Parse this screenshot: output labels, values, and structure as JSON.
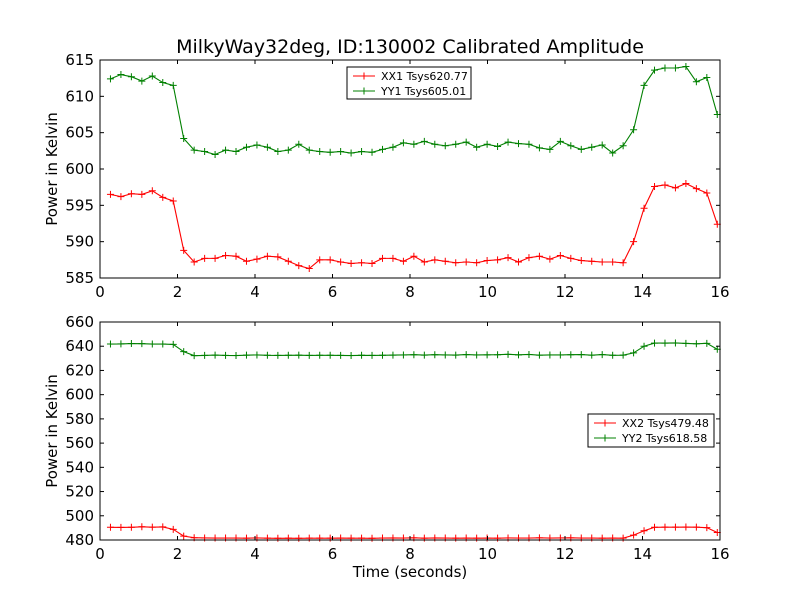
{
  "chart_data": [
    {
      "type": "line",
      "title": "MilkyWay32deg, ID:130002 Calibrated Amplitude",
      "xlabel": "",
      "ylabel": "Power in Kelvin",
      "xlim": [
        0,
        16
      ],
      "ylim": [
        585,
        615
      ],
      "xticks": [
        0,
        2,
        4,
        6,
        8,
        10,
        12,
        14,
        16
      ],
      "yticks": [
        585,
        590,
        595,
        600,
        605,
        610,
        615
      ],
      "grid": false,
      "legend": "top-center",
      "series": [
        {
          "name": "XX1 Tsys620.77",
          "color": "#ff0000",
          "x": [
            0.27,
            0.54,
            0.81,
            1.08,
            1.35,
            1.62,
            1.89,
            2.16,
            2.43,
            2.7,
            2.97,
            3.24,
            3.51,
            3.78,
            4.05,
            4.32,
            4.59,
            4.86,
            5.13,
            5.4,
            5.67,
            5.94,
            6.21,
            6.48,
            6.75,
            7.02,
            7.29,
            7.56,
            7.83,
            8.1,
            8.37,
            8.64,
            8.91,
            9.18,
            9.45,
            9.72,
            9.99,
            10.26,
            10.53,
            10.8,
            11.07,
            11.34,
            11.61,
            11.88,
            12.15,
            12.42,
            12.69,
            12.96,
            13.23,
            13.5,
            13.77,
            14.04,
            14.31,
            14.58,
            14.85,
            15.12,
            15.39,
            15.66,
            15.93
          ],
          "values": [
            596.5,
            596.2,
            596.6,
            596.5,
            597.0,
            596.1,
            595.6,
            588.8,
            587.2,
            587.7,
            587.7,
            588.1,
            588.0,
            587.3,
            587.6,
            588.0,
            587.9,
            587.3,
            586.7,
            586.3,
            587.5,
            587.5,
            587.2,
            587.0,
            587.1,
            587.0,
            587.7,
            587.7,
            587.3,
            588.0,
            587.2,
            587.5,
            587.3,
            587.1,
            587.2,
            587.1,
            587.4,
            587.5,
            587.8,
            587.2,
            587.8,
            588.0,
            587.6,
            588.1,
            587.7,
            587.4,
            587.3,
            587.2,
            587.2,
            587.1,
            590.0,
            594.6,
            597.6,
            597.8,
            597.4,
            598.0,
            597.3,
            596.7,
            592.4
          ]
        },
        {
          "name": "YY1 Tsys605.01",
          "color": "#008000",
          "x": [
            0.27,
            0.54,
            0.81,
            1.08,
            1.35,
            1.62,
            1.89,
            2.16,
            2.43,
            2.7,
            2.97,
            3.24,
            3.51,
            3.78,
            4.05,
            4.32,
            4.59,
            4.86,
            5.13,
            5.4,
            5.67,
            5.94,
            6.21,
            6.48,
            6.75,
            7.02,
            7.29,
            7.56,
            7.83,
            8.1,
            8.37,
            8.64,
            8.91,
            9.18,
            9.45,
            9.72,
            9.99,
            10.26,
            10.53,
            10.8,
            11.07,
            11.34,
            11.61,
            11.88,
            12.15,
            12.42,
            12.69,
            12.96,
            13.23,
            13.5,
            13.77,
            14.04,
            14.31,
            14.58,
            14.85,
            15.12,
            15.39,
            15.66,
            15.93
          ],
          "values": [
            612.4,
            613.0,
            612.7,
            612.1,
            612.8,
            611.9,
            611.5,
            604.2,
            602.6,
            602.4,
            602.0,
            602.6,
            602.4,
            603.0,
            603.3,
            603.0,
            602.4,
            602.6,
            603.4,
            602.6,
            602.4,
            602.3,
            602.4,
            602.2,
            602.4,
            602.3,
            602.7,
            603.0,
            603.6,
            603.4,
            603.8,
            603.4,
            603.2,
            603.4,
            603.7,
            603.0,
            603.4,
            603.1,
            603.7,
            603.5,
            603.4,
            602.9,
            602.7,
            603.8,
            603.2,
            602.7,
            603.0,
            603.3,
            602.2,
            603.2,
            605.4,
            611.5,
            613.6,
            613.9,
            613.9,
            614.1,
            612.0,
            612.6,
            607.5
          ]
        }
      ]
    },
    {
      "type": "line",
      "title": "",
      "xlabel": "Time (seconds)",
      "ylabel": "Power in Kelvin",
      "xlim": [
        0,
        16
      ],
      "ylim": [
        480,
        660
      ],
      "xticks": [
        0,
        2,
        4,
        6,
        8,
        10,
        12,
        14,
        16
      ],
      "yticks": [
        480,
        500,
        520,
        540,
        560,
        580,
        600,
        620,
        640,
        660
      ],
      "grid": false,
      "legend": "center-right",
      "series": [
        {
          "name": "XX2 Tsys479.48",
          "color": "#ff0000",
          "x": [
            0.27,
            0.54,
            0.81,
            1.08,
            1.35,
            1.62,
            1.89,
            2.16,
            2.43,
            2.7,
            2.97,
            3.24,
            3.51,
            3.78,
            4.05,
            4.32,
            4.59,
            4.86,
            5.13,
            5.4,
            5.67,
            5.94,
            6.21,
            6.48,
            6.75,
            7.02,
            7.29,
            7.56,
            7.83,
            8.1,
            8.37,
            8.64,
            8.91,
            9.18,
            9.45,
            9.72,
            9.99,
            10.26,
            10.53,
            10.8,
            11.07,
            11.34,
            11.61,
            11.88,
            12.15,
            12.42,
            12.69,
            12.96,
            13.23,
            13.5,
            13.77,
            14.04,
            14.31,
            14.58,
            14.85,
            15.12,
            15.39,
            15.66,
            15.93
          ],
          "values": [
            490.5,
            490.4,
            490.5,
            490.9,
            490.6,
            490.8,
            488.8,
            483.2,
            481.9,
            481.7,
            481.6,
            481.6,
            481.6,
            481.5,
            481.7,
            481.5,
            481.4,
            481.5,
            481.4,
            481.5,
            481.5,
            481.5,
            481.6,
            481.5,
            481.5,
            481.4,
            481.6,
            481.7,
            481.6,
            481.8,
            481.5,
            481.7,
            481.6,
            481.5,
            481.6,
            481.5,
            481.6,
            481.5,
            481.7,
            481.6,
            481.6,
            481.8,
            481.6,
            481.7,
            481.8,
            481.6,
            481.6,
            481.5,
            481.6,
            481.5,
            484.0,
            487.6,
            490.5,
            490.6,
            490.6,
            490.7,
            490.6,
            490.2,
            486.2
          ]
        },
        {
          "name": "YY2 Tsys618.58",
          "color": "#008000",
          "x": [
            0.27,
            0.54,
            0.81,
            1.08,
            1.35,
            1.62,
            1.89,
            2.16,
            2.43,
            2.7,
            2.97,
            3.24,
            3.51,
            3.78,
            4.05,
            4.32,
            4.59,
            4.86,
            5.13,
            5.4,
            5.67,
            5.94,
            6.21,
            6.48,
            6.75,
            7.02,
            7.29,
            7.56,
            7.83,
            8.1,
            8.37,
            8.64,
            8.91,
            9.18,
            9.45,
            9.72,
            9.99,
            10.26,
            10.53,
            10.8,
            11.07,
            11.34,
            11.61,
            11.88,
            12.15,
            12.42,
            12.69,
            12.96,
            13.23,
            13.5,
            13.77,
            14.04,
            14.31,
            14.58,
            14.85,
            15.12,
            15.39,
            15.66,
            15.93
          ],
          "values": [
            641.8,
            641.9,
            642.2,
            642.1,
            641.8,
            641.8,
            641.5,
            635.5,
            632.2,
            632.4,
            632.7,
            632.4,
            632.3,
            632.6,
            632.8,
            632.5,
            632.4,
            632.5,
            632.6,
            632.4,
            632.5,
            632.5,
            632.4,
            632.3,
            632.5,
            632.4,
            632.5,
            632.7,
            632.8,
            633.0,
            632.7,
            633.0,
            632.8,
            632.7,
            633.1,
            632.8,
            632.9,
            633.0,
            633.3,
            632.9,
            633.2,
            632.6,
            632.8,
            632.8,
            633.0,
            633.1,
            632.6,
            633.1,
            632.5,
            632.6,
            634.5,
            640.0,
            642.6,
            642.6,
            642.7,
            642.3,
            642.0,
            642.4,
            637.5
          ]
        }
      ]
    }
  ]
}
